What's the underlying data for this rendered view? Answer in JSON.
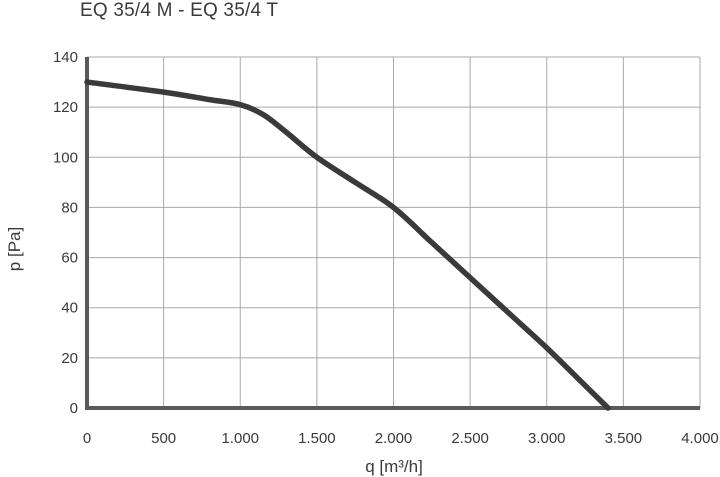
{
  "chart_data": {
    "type": "line",
    "title": "EQ 35/4 M - EQ 35/4 T",
    "xlabel": "q [m³/h]",
    "ylabel": "p [Pa]",
    "xlim": [
      0,
      4000
    ],
    "ylim": [
      0,
      140
    ],
    "x_ticks": [
      0,
      500,
      1000,
      1500,
      2000,
      2500,
      3000,
      3500,
      4000
    ],
    "x_tick_labels": [
      "0",
      "500",
      "1.000",
      "1.500",
      "2.000",
      "2.500",
      "3.000",
      "3.500",
      "4.000"
    ],
    "y_ticks": [
      0,
      20,
      40,
      60,
      80,
      100,
      120,
      140
    ],
    "y_tick_labels": [
      "0",
      "20",
      "40",
      "60",
      "80",
      "100",
      "120",
      "140"
    ],
    "grid": true,
    "series": [
      {
        "color": "#3a3a3a",
        "x": [
          0,
          500,
          800,
          1000,
          1150,
          1300,
          1500,
          1750,
          2000,
          2250,
          2500,
          2750,
          3000,
          3200,
          3400
        ],
        "y": [
          130,
          126,
          123,
          121,
          117,
          110,
          100,
          90,
          80,
          66,
          52,
          38,
          24,
          12,
          0
        ]
      }
    ]
  }
}
